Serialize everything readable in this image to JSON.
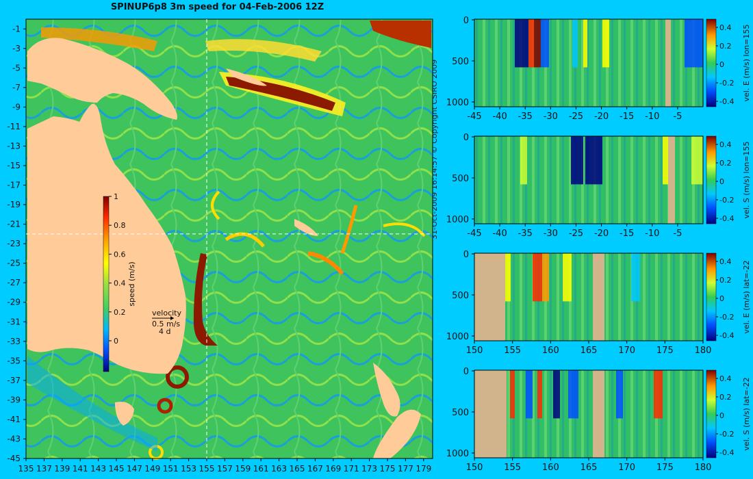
{
  "title": "SPINUP6p8 3m speed for 04-Feb-2006 12Z",
  "copyright": "31-Oct-2009 16:14:57  © Copyright CSIRO 2009",
  "map": {
    "x_ticks": [
      135,
      137,
      139,
      141,
      143,
      145,
      147,
      149,
      151,
      153,
      155,
      157,
      159,
      161,
      163,
      165,
      167,
      169,
      171,
      173,
      175,
      177,
      179
    ],
    "y_ticks": [
      -1,
      -3,
      -5,
      -7,
      -9,
      -11,
      -13,
      -15,
      -17,
      -19,
      -21,
      -23,
      -25,
      -27,
      -29,
      -31,
      -33,
      -35,
      -37,
      -39,
      -41,
      -43,
      -45
    ],
    "xlim": [
      135,
      180
    ],
    "ylim": [
      -45,
      0
    ],
    "colorbar": {
      "label": "speed (m/s)",
      "ticks": [
        "1",
        "0.8",
        "0.6",
        "0.4",
        "0.2",
        "0"
      ]
    },
    "velocity_key": {
      "title": "velocity",
      "speed": "0.5 m/s",
      "days": "4 d"
    },
    "crosshair": {
      "lon": 155,
      "lat": -22
    },
    "colors": {
      "land": "#ffcc99",
      "ocean_base": "#3fbf5a",
      "strong": "#8b1a00"
    }
  },
  "panels": [
    {
      "cblabel": "vel. E (m/s) lon=155",
      "xticks": [
        "-45",
        "-40",
        "-35",
        "-30",
        "-25",
        "-20",
        "-15",
        "-10",
        "-5"
      ],
      "xmin": -45,
      "xmax": 0,
      "yticks": [
        "0",
        "500",
        "1000"
      ],
      "cbticks": [
        "0.4",
        "0.2",
        "0",
        "-0.2",
        "-0.4"
      ]
    },
    {
      "cblabel": "vel. S (m/s) lon=155",
      "xticks": [
        "-45",
        "-40",
        "-35",
        "-30",
        "-25",
        "-20",
        "-15",
        "-10",
        "-5"
      ],
      "xmin": -45,
      "xmax": 0,
      "yticks": [
        "0",
        "500",
        "1000"
      ],
      "cbticks": [
        "0.4",
        "0.2",
        "0",
        "-0.2",
        "-0.4"
      ]
    },
    {
      "cblabel": "vel. E (m/s) lat=-22",
      "xticks": [
        "150",
        "155",
        "160",
        "165",
        "170",
        "175",
        "180"
      ],
      "xmin": 150,
      "xmax": 180,
      "yticks": [
        "0",
        "500",
        "1000"
      ],
      "cbticks": [
        "0.4",
        "0.2",
        "0",
        "-0.2",
        "-0.4"
      ]
    },
    {
      "cblabel": "vel. S (m/s) lat=-22",
      "xticks": [
        "150",
        "155",
        "160",
        "165",
        "170",
        "175",
        "180"
      ],
      "xmin": 150,
      "xmax": 180,
      "yticks": [
        "0",
        "500",
        "1000"
      ],
      "cbticks": [
        "0.4",
        "0.2",
        "0",
        "-0.2",
        "-0.4"
      ]
    }
  ],
  "chart_data": [
    {
      "type": "heatmap",
      "title": "SPINUP6p8 3m speed for 04-Feb-2006 12Z",
      "xlabel": "",
      "ylabel": "",
      "xlim": [
        135,
        180
      ],
      "ylim": [
        -45,
        0
      ],
      "colorbar": {
        "label": "speed (m/s)",
        "range": [
          0,
          1
        ]
      },
      "features": [
        {
          "name": "strong eastward jet",
          "lon": [
            159,
            168
          ],
          "lat": [
            -10,
            -6
          ],
          "speed": 1.0
        },
        {
          "name": "East Australian Current",
          "lon": [
            153,
            154.5
          ],
          "lat": [
            -33,
            -25
          ],
          "speed": 1.0
        },
        {
          "name": "warm eddy",
          "lon": 151.8,
          "lat": -36.8,
          "speed": 1.0
        },
        {
          "name": "eddy",
          "lon": 150,
          "lat": -39.8,
          "speed": 0.9
        }
      ]
    },
    {
      "type": "heatmap",
      "colorbar": {
        "label": "vel. E (m/s) lon=155",
        "range": [
          -0.4,
          0.4
        ]
      },
      "xlim": [
        -45,
        0
      ],
      "ylim": [
        1000,
        0
      ]
    },
    {
      "type": "heatmap",
      "colorbar": {
        "label": "vel. S (m/s) lon=155",
        "range": [
          -0.4,
          0.4
        ]
      },
      "xlim": [
        -45,
        0
      ],
      "ylim": [
        1000,
        0
      ]
    },
    {
      "type": "heatmap",
      "colorbar": {
        "label": "vel. E (m/s) lat=-22",
        "range": [
          -0.4,
          0.4
        ]
      },
      "xlim": [
        150,
        180
      ],
      "ylim": [
        1000,
        0
      ]
    },
    {
      "type": "heatmap",
      "colorbar": {
        "label": "vel. S (m/s) lat=-22",
        "range": [
          -0.4,
          0.4
        ]
      },
      "xlim": [
        150,
        180
      ],
      "ylim": [
        1000,
        0
      ]
    }
  ]
}
